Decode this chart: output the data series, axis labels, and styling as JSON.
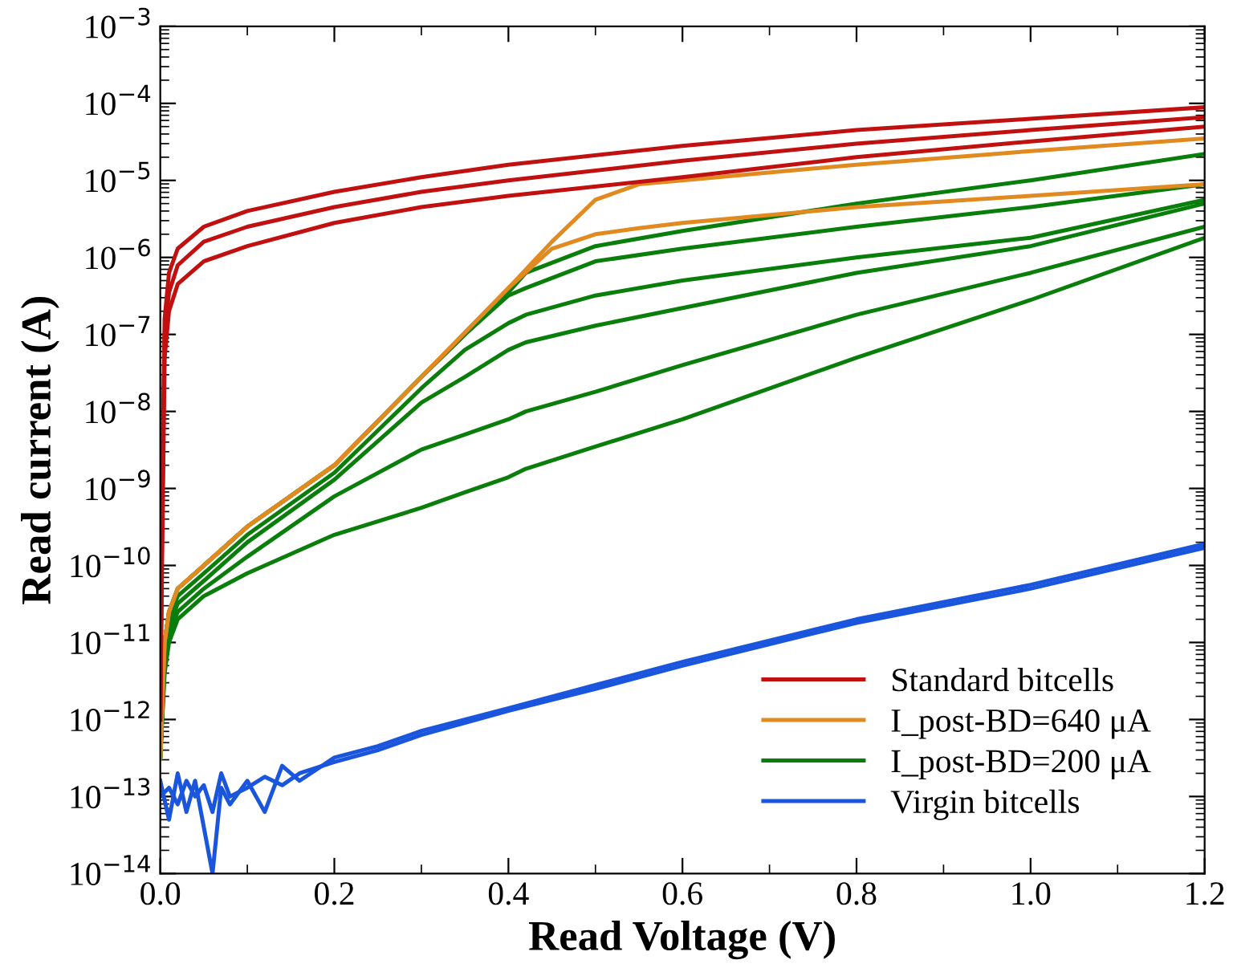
{
  "chart_data": {
    "type": "line",
    "xlabel": "Read Voltage (V)",
    "ylabel": "Read current (A)",
    "log": "y",
    "xlim": [
      0,
      1.2
    ],
    "xticks": [
      {
        "value": 0,
        "label": "0.0"
      },
      0.2,
      0.4,
      0.6,
      0.8,
      {
        "value": 1.0,
        "label": "1.0"
      },
      1.2
    ],
    "ylim": [
      1e-14,
      0.001
    ],
    "yticks": [
      {
        "value": 1e-14,
        "label": "10$^{−14}$"
      },
      {
        "value": 1e-13,
        "label": "10$^{−13}$"
      },
      {
        "value": 1e-12,
        "label": "10$^{−12}$"
      },
      {
        "value": 1e-11,
        "label": "10$^{−11}$"
      },
      {
        "value": 1e-10,
        "label": "10$^{−10}$"
      },
      {
        "value": 1e-09,
        "label": "10$^{−9}$"
      },
      {
        "value": 1e-08,
        "label": "10$^{−8}$"
      },
      {
        "value": 1e-07,
        "label": "10$^{−7}$"
      },
      {
        "value": 1e-06,
        "label": "10$^{−6}$"
      },
      {
        "value": 1e-05,
        "label": "10$^{−5}$"
      },
      {
        "value": 0.0001,
        "label": "10$^{−4}$"
      },
      {
        "value": 0.001,
        "label": "10$^{−3}$"
      }
    ],
    "grid": false,
    "legend": "bottom right",
    "marker": "none",
    "line_style": "solid",
    "series": [
      {
        "name": "Standard bitcells",
        "color": "#c0100f",
        "x": [
          0,
          0.002,
          0.005,
          0.01,
          0.02,
          0.05,
          0.1,
          0.2,
          0.3,
          0.4,
          0.6,
          0.8,
          1.0,
          1.2
        ],
        "values": [
          1e-12,
          1e-09,
          1.6e-07,
          6.3e-07,
          1.3e-06,
          2.5e-06,
          4e-06,
          7.1e-06,
          1.1e-05,
          1.6e-05,
          2.8e-05,
          4.5e-05,
          6.3e-05,
          8.9e-05
        ]
      },
      {
        "color": "#c0100f",
        "x": [
          0,
          0.002,
          0.005,
          0.01,
          0.02,
          0.05,
          0.1,
          0.2,
          0.3,
          0.4,
          0.6,
          0.8,
          1.0,
          1.2
        ],
        "values": [
          1e-12,
          3.2e-10,
          1e-07,
          3.5e-07,
          7.9e-07,
          1.6e-06,
          2.5e-06,
          4.5e-06,
          7.1e-06,
          1e-05,
          1.8e-05,
          3e-05,
          4.5e-05,
          6.6e-05
        ]
      },
      {
        "color": "#c0100f",
        "x": [
          0,
          0.002,
          0.005,
          0.01,
          0.02,
          0.05,
          0.1,
          0.2,
          0.3,
          0.4,
          0.6,
          0.8,
          1.0,
          1.2
        ],
        "values": [
          1e-12,
          1e-10,
          5e-08,
          2e-07,
          4.5e-07,
          8.9e-07,
          1.4e-06,
          2.8e-06,
          4.5e-06,
          6.3e-06,
          1.1e-05,
          2e-05,
          3.2e-05,
          5e-05
        ]
      },
      {
        "name": "I_post-BD=640 μA",
        "color": "#e08a20",
        "x": [
          0,
          0.005,
          0.01,
          0.02,
          0.05,
          0.1,
          0.2,
          0.3,
          0.4,
          0.45,
          0.5,
          0.55,
          0.6,
          0.8,
          1.0,
          1.2
        ],
        "values": [
          3.2e-13,
          1e-11,
          2.5e-11,
          5e-11,
          1e-10,
          3.2e-10,
          2e-09,
          2.8e-08,
          4e-07,
          1.6e-06,
          5.6e-06,
          8.9e-06,
          1e-05,
          1.6e-05,
          2.4e-05,
          3.5e-05
        ]
      },
      {
        "color": "#e08a20",
        "x": [
          0,
          0.005,
          0.01,
          0.02,
          0.05,
          0.1,
          0.2,
          0.3,
          0.4,
          0.45,
          0.5,
          0.55,
          0.6,
          0.8,
          1.0,
          1.2
        ],
        "values": [
          3.2e-13,
          1e-11,
          2.5e-11,
          5e-11,
          1e-10,
          3.2e-10,
          2e-09,
          2.8e-08,
          4e-07,
          1.3e-06,
          2e-06,
          2.4e-06,
          2.8e-06,
          4.5e-06,
          6.3e-06,
          8.9e-06
        ]
      },
      {
        "name": "I_post-BD=200 μA",
        "color": "#0a7e0a",
        "x": [
          0,
          0.005,
          0.01,
          0.02,
          0.05,
          0.1,
          0.2,
          0.3,
          0.35,
          0.4,
          0.42,
          0.5,
          0.6,
          0.8,
          1.0,
          1.2
        ],
        "values": [
          3.2e-13,
          1e-11,
          2.5e-11,
          5e-11,
          1e-10,
          3.2e-10,
          2e-09,
          2.8e-08,
          1e-07,
          3.5e-07,
          6.3e-07,
          1.4e-06,
          2.2e-06,
          5e-06,
          1e-05,
          2.2e-05
        ]
      },
      {
        "color": "#0a7e0a",
        "x": [
          0,
          0.005,
          0.01,
          0.02,
          0.05,
          0.1,
          0.2,
          0.3,
          0.35,
          0.4,
          0.42,
          0.5,
          0.6,
          0.8,
          1.0,
          1.2
        ],
        "values": [
          3.2e-13,
          1e-11,
          2.5e-11,
          5e-11,
          1e-10,
          3.2e-10,
          2e-09,
          2.8e-08,
          1e-07,
          3.2e-07,
          4e-07,
          8.9e-07,
          1.3e-06,
          2.5e-06,
          4.5e-06,
          8.9e-06
        ]
      },
      {
        "color": "#0a7e0a",
        "x": [
          0,
          0.005,
          0.01,
          0.02,
          0.05,
          0.1,
          0.2,
          0.3,
          0.35,
          0.4,
          0.42,
          0.5,
          0.6,
          0.8,
          1.0,
          1.2
        ],
        "values": [
          3.2e-13,
          7.9e-12,
          2e-11,
          4e-11,
          7.9e-11,
          2.5e-10,
          1.6e-09,
          2e-08,
          6.3e-08,
          1.4e-07,
          1.8e-07,
          3.2e-07,
          5e-07,
          1e-06,
          1.8e-06,
          5.6e-06
        ]
      },
      {
        "color": "#0a7e0a",
        "x": [
          0,
          0.005,
          0.01,
          0.02,
          0.05,
          0.1,
          0.2,
          0.3,
          0.35,
          0.4,
          0.42,
          0.5,
          0.6,
          0.8,
          1.0,
          1.2
        ],
        "values": [
          3.2e-13,
          6.3e-12,
          1.6e-11,
          3.2e-11,
          6.3e-11,
          2e-10,
          1.3e-09,
          1.3e-08,
          2.8e-08,
          6.3e-08,
          7.9e-08,
          1.3e-07,
          2.2e-07,
          6.3e-07,
          1.4e-06,
          5e-06
        ]
      },
      {
        "color": "#0a7e0a",
        "x": [
          0,
          0.005,
          0.01,
          0.02,
          0.05,
          0.1,
          0.2,
          0.3,
          0.35,
          0.4,
          0.42,
          0.5,
          0.6,
          0.8,
          1.0,
          1.2
        ],
        "values": [
          3.2e-13,
          5e-12,
          1.3e-11,
          2.5e-11,
          5e-11,
          1.3e-10,
          7.9e-10,
          3.2e-09,
          5e-09,
          7.9e-09,
          1e-08,
          1.8e-08,
          4e-08,
          1.8e-07,
          6.3e-07,
          2.5e-06
        ]
      },
      {
        "color": "#0a7e0a",
        "x": [
          0,
          0.005,
          0.01,
          0.02,
          0.05,
          0.1,
          0.2,
          0.3,
          0.35,
          0.4,
          0.42,
          0.5,
          0.6,
          0.8,
          1.0,
          1.2
        ],
        "values": [
          3.2e-13,
          4e-12,
          1e-11,
          2e-11,
          4e-11,
          7.9e-11,
          2.5e-10,
          5.6e-10,
          8.9e-10,
          1.4e-09,
          1.8e-09,
          3.5e-09,
          7.9e-09,
          5e-08,
          2.8e-07,
          1.8e-06
        ]
      },
      {
        "name": "Virgin bitcells",
        "color": "#1a55dd",
        "x": [
          0,
          0.01,
          0.02,
          0.03,
          0.04,
          0.05,
          0.06,
          0.07,
          0.08,
          0.1,
          0.12,
          0.14,
          0.16,
          0.2,
          0.25,
          0.3,
          0.4,
          0.5,
          0.6,
          0.8,
          1.0,
          1.2
        ],
        "values": [
          1.6e-13,
          5e-14,
          2e-13,
          6.3e-14,
          1.6e-13,
          4e-14,
          1e-14,
          1.3e-13,
          7.9e-14,
          1.6e-13,
          6.3e-14,
          2.5e-13,
          1.6e-13,
          3.2e-13,
          4.5e-13,
          7.1e-13,
          1.4e-12,
          2.8e-12,
          5.6e-12,
          2e-11,
          5.6e-11,
          1.9e-10
        ]
      },
      {
        "color": "#1a55dd",
        "x": [
          0,
          0.01,
          0.02,
          0.03,
          0.04,
          0.05,
          0.06,
          0.07,
          0.08,
          0.1,
          0.12,
          0.14,
          0.16,
          0.2,
          0.25,
          0.3,
          0.4,
          0.5,
          0.6,
          0.8,
          1.0,
          1.2
        ],
        "values": [
          1e-13,
          1.3e-13,
          7.9e-14,
          1.6e-13,
          1e-13,
          1.4e-13,
          6.3e-14,
          2e-13,
          1e-13,
          1.3e-13,
          1.8e-13,
          1.4e-13,
          2e-13,
          2.8e-13,
          4e-13,
          6.3e-13,
          1.3e-12,
          2.5e-12,
          5e-12,
          1.8e-11,
          5e-11,
          1.7e-10
        ]
      }
    ]
  }
}
